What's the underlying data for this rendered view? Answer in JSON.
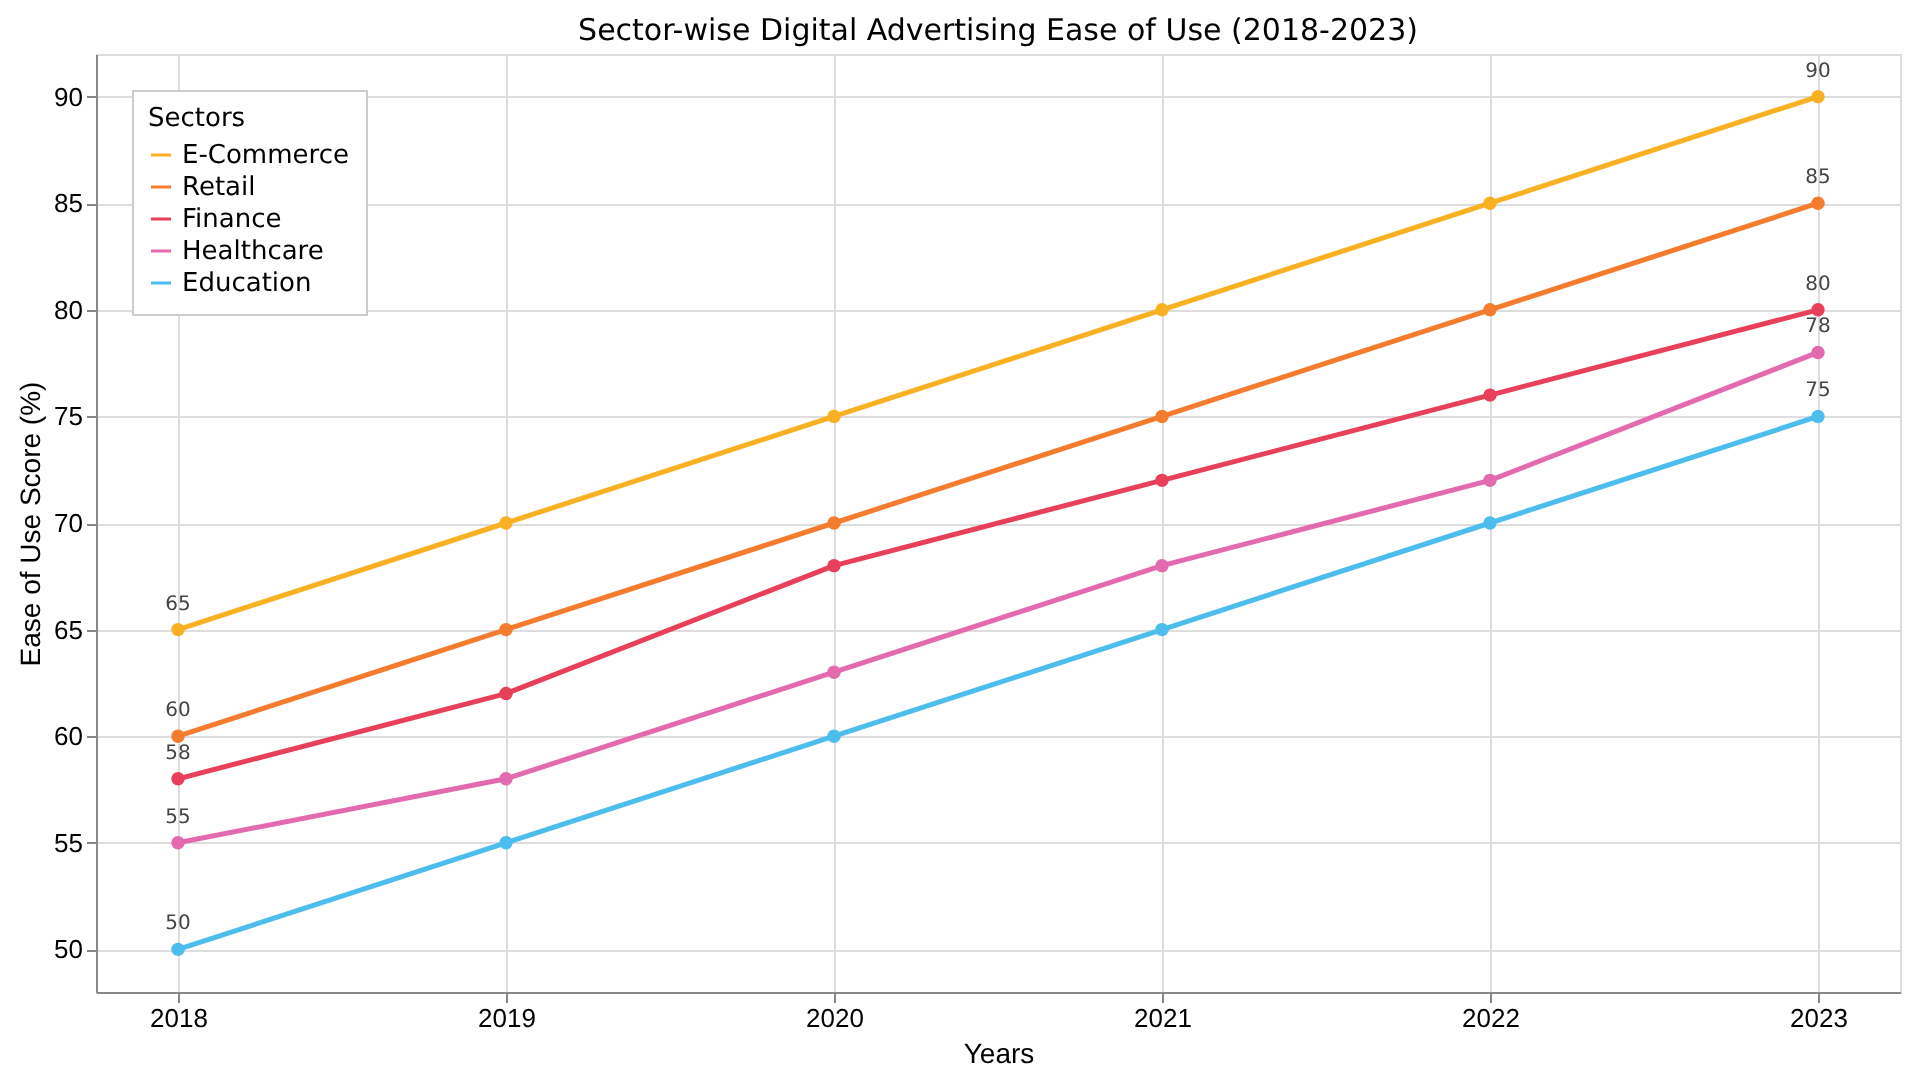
{
  "chart_data": {
    "type": "line",
    "title": "Sector-wise Digital Advertising Ease of Use (2018-2023)",
    "xlabel": "Years",
    "ylabel": "Ease of Use Score (%)",
    "legend_title": "Sectors",
    "x": [
      2018,
      2019,
      2020,
      2021,
      2022,
      2023
    ],
    "xlim": [
      2017.75,
      2023.25
    ],
    "xticks": [
      2018,
      2019,
      2020,
      2021,
      2022,
      2023
    ],
    "ylim": [
      48,
      92
    ],
    "yticks": [
      50,
      55,
      60,
      65,
      70,
      75,
      80,
      85,
      90
    ],
    "grid": true,
    "legend": "top left",
    "marker": "circle",
    "line_style": "solid",
    "series": [
      {
        "name": "E-Commerce",
        "color": "#f9b123",
        "values": [
          65,
          70,
          75,
          80,
          85,
          90
        ],
        "value_labels": [
          "65",
          null,
          null,
          null,
          null,
          "90"
        ]
      },
      {
        "name": "Retail",
        "color": "#f57b2f",
        "values": [
          60,
          65,
          70,
          75,
          80,
          85
        ],
        "value_labels": [
          "60",
          null,
          null,
          null,
          null,
          "85"
        ]
      },
      {
        "name": "Finance",
        "color": "#e8405a",
        "values": [
          58,
          62,
          68,
          72,
          76,
          80
        ],
        "value_labels": [
          "58",
          null,
          null,
          null,
          null,
          "80"
        ]
      },
      {
        "name": "Healthcare",
        "color": "#e36aaf",
        "values": [
          55,
          58,
          63,
          68,
          72,
          78
        ],
        "value_labels": [
          "55",
          null,
          null,
          null,
          null,
          "78"
        ]
      },
      {
        "name": "Education",
        "color": "#4dbdee",
        "values": [
          50,
          55,
          60,
          65,
          70,
          75
        ],
        "value_labels": [
          "50",
          null,
          null,
          null,
          null,
          "75"
        ]
      }
    ]
  }
}
